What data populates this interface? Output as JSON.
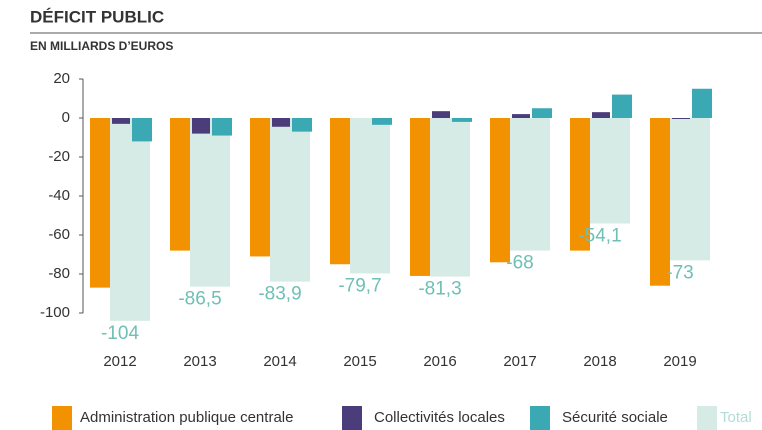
{
  "chart_data": {
    "type": "bar",
    "title": "DÉFICIT PUBLIC",
    "subtitle": "EN MILLIARDS D’EUROS",
    "categories": [
      "2012",
      "2013",
      "2014",
      "2015",
      "2016",
      "2017",
      "2018",
      "2019"
    ],
    "series": [
      {
        "name": "Administration publique centrale",
        "color": "#f39200",
        "values": [
          -87,
          -68,
          -71,
          -75,
          -81,
          -74,
          -68,
          -86
        ]
      },
      {
        "name": "Collectivités locales",
        "color": "#4b3c7a",
        "values": [
          -3,
          -8,
          -4.5,
          0,
          3.5,
          2,
          3,
          -0.5
        ]
      },
      {
        "name": "Sécurité sociale",
        "color": "#3aa9b4",
        "values": [
          -12,
          -9,
          -7,
          -3.5,
          -2,
          5,
          12,
          15
        ]
      },
      {
        "name": "Total",
        "color": "#d6ebe5",
        "values": [
          -104,
          -86.5,
          -83.9,
          -79.7,
          -81.3,
          -68,
          -54.1,
          -73
        ],
        "value_labels": [
          "-104",
          "-86,5",
          "-83,9",
          "-79,7",
          "-81,3",
          "-68",
          "-54,1",
          "-73"
        ]
      }
    ],
    "ylim": [
      -105,
      22
    ],
    "yticks": [
      -100,
      -80,
      -60,
      -40,
      -20,
      0,
      20
    ],
    "grid": false
  }
}
